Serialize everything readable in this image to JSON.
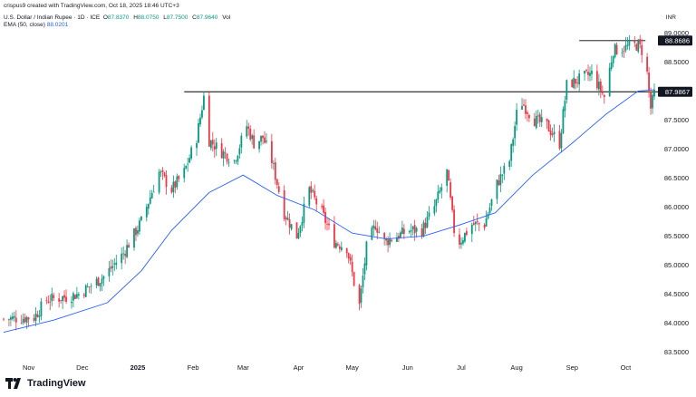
{
  "header": {
    "attribution": "crispus9 created with TradingView.com, Oct 18, 2025 18:46 UTC+3",
    "symbol": "U.S. Dollar / Indian Rupee · 1D · ICE",
    "ohlc": {
      "o_label": "O",
      "o": "87.8370",
      "h_label": "H",
      "h": "88.0750",
      "l_label": "L",
      "l": "87.7500",
      "c_label": "C",
      "c": "87.9640",
      "vol_label": "Vol"
    },
    "ema": {
      "label": "EMA (50, close)",
      "value": "88.0201"
    },
    "currency": "INR"
  },
  "footer": {
    "brand": "TradingView"
  },
  "colors": {
    "up": "#089981",
    "down": "#f23645",
    "ema": "#2962ff",
    "resistance": "#000000",
    "axis_text": "#131722"
  },
  "chart_data": {
    "type": "candlestick",
    "title": "U.S. Dollar / Indian Rupee",
    "ylim": [
      83.35,
      89.1
    ],
    "y_ticks": [
      "89.0000",
      "88.5000",
      "88.0000",
      "87.5000",
      "87.0000",
      "86.5000",
      "86.0000",
      "85.5000",
      "85.0000",
      "84.5000",
      "84.0000",
      "83.5000"
    ],
    "y_tick_values": [
      89.0,
      88.5,
      88.0,
      87.5,
      87.0,
      86.5,
      86.0,
      85.5,
      85.0,
      84.5,
      84.0,
      83.5
    ],
    "x_ticks": [
      "Nov",
      "Dec",
      "2025",
      "Feb",
      "Mar",
      "Apr",
      "May",
      "Jun",
      "Jul",
      "Aug",
      "Sep",
      "Oct"
    ],
    "x_tick_dates": [
      "2024-11-01",
      "2024-12-01",
      "2025-01-01",
      "2025-02-01",
      "2025-03-01",
      "2025-04-01",
      "2025-05-01",
      "2025-06-01",
      "2025-07-01",
      "2025-08-01",
      "2025-09-01",
      "2025-10-01"
    ],
    "date_range": [
      "2024-10-18",
      "2025-10-17"
    ],
    "price_labels": [
      {
        "label": "88.8686",
        "value": 88.8686
      },
      {
        "label": "87.9867",
        "value": 87.9867
      }
    ],
    "horizontal_lines": [
      {
        "value": 88.8686,
        "from": "2025-09-05",
        "to": "2025-10-10"
      },
      {
        "value": 87.9867,
        "from": "2025-01-27",
        "to": "2025-10-17"
      }
    ],
    "close_path": [
      [
        "2024-10-18",
        84.07
      ],
      [
        "2024-11-04",
        84.1
      ],
      [
        "2024-11-11",
        84.4
      ],
      [
        "2024-11-22",
        84.45
      ],
      [
        "2024-11-29",
        84.5
      ],
      [
        "2024-12-13",
        84.8
      ],
      [
        "2024-12-24",
        85.2
      ],
      [
        "2025-01-03",
        85.75
      ],
      [
        "2025-01-13",
        86.6
      ],
      [
        "2025-01-20",
        86.3
      ],
      [
        "2025-01-27",
        86.6
      ],
      [
        "2025-02-03",
        87.2
      ],
      [
        "2025-02-07",
        87.9
      ],
      [
        "2025-02-10",
        87.15
      ],
      [
        "2025-02-17",
        86.95
      ],
      [
        "2025-02-24",
        86.8
      ],
      [
        "2025-03-03",
        87.4
      ],
      [
        "2025-03-07",
        87.1
      ],
      [
        "2025-03-12",
        87.2
      ],
      [
        "2025-03-17",
        86.8
      ],
      [
        "2025-03-24",
        85.9
      ],
      [
        "2025-03-31",
        85.5
      ],
      [
        "2025-04-07",
        86.3
      ],
      [
        "2025-04-14",
        85.9
      ],
      [
        "2025-04-21",
        85.4
      ],
      [
        "2025-04-28",
        85.3
      ],
      [
        "2025-05-02",
        84.7
      ],
      [
        "2025-05-05",
        84.3
      ],
      [
        "2025-05-09",
        85.3
      ],
      [
        "2025-05-14",
        85.7
      ],
      [
        "2025-05-19",
        85.4
      ],
      [
        "2025-05-26",
        85.5
      ],
      [
        "2025-06-02",
        85.6
      ],
      [
        "2025-06-09",
        85.6
      ],
      [
        "2025-06-16",
        86.0
      ],
      [
        "2025-06-23",
        86.6
      ],
      [
        "2025-06-27",
        85.6
      ],
      [
        "2025-06-30",
        85.4
      ],
      [
        "2025-07-07",
        85.7
      ],
      [
        "2025-07-14",
        85.7
      ],
      [
        "2025-07-21",
        86.4
      ],
      [
        "2025-07-28",
        86.8
      ],
      [
        "2025-08-01",
        87.6
      ],
      [
        "2025-08-04",
        87.8
      ],
      [
        "2025-08-11",
        87.5
      ],
      [
        "2025-08-18",
        87.4
      ],
      [
        "2025-08-25",
        87.1
      ],
      [
        "2025-08-29",
        88.1
      ],
      [
        "2025-09-05",
        88.2
      ],
      [
        "2025-09-12",
        88.3
      ],
      [
        "2025-09-19",
        87.9
      ],
      [
        "2025-09-24",
        88.7
      ],
      [
        "2025-10-01",
        88.75
      ],
      [
        "2025-10-08",
        88.8
      ],
      [
        "2025-10-10",
        88.7
      ],
      [
        "2025-10-13",
        88.3
      ],
      [
        "2025-10-15",
        87.7
      ],
      [
        "2025-10-17",
        87.96
      ]
    ],
    "ema_50": [
      [
        "2024-10-18",
        83.84
      ],
      [
        "2024-11-15",
        84.05
      ],
      [
        "2024-12-15",
        84.35
      ],
      [
        "2025-01-03",
        84.9
      ],
      [
        "2025-01-20",
        85.6
      ],
      [
        "2025-02-10",
        86.25
      ],
      [
        "2025-03-01",
        86.55
      ],
      [
        "2025-03-20",
        86.2
      ],
      [
        "2025-04-10",
        85.95
      ],
      [
        "2025-05-01",
        85.55
      ],
      [
        "2025-05-20",
        85.45
      ],
      [
        "2025-06-10",
        85.5
      ],
      [
        "2025-07-01",
        85.7
      ],
      [
        "2025-07-20",
        85.9
      ],
      [
        "2025-08-10",
        86.55
      ],
      [
        "2025-09-01",
        87.1
      ],
      [
        "2025-09-20",
        87.6
      ],
      [
        "2025-10-08",
        88.0
      ],
      [
        "2025-10-17",
        88.02
      ]
    ]
  }
}
